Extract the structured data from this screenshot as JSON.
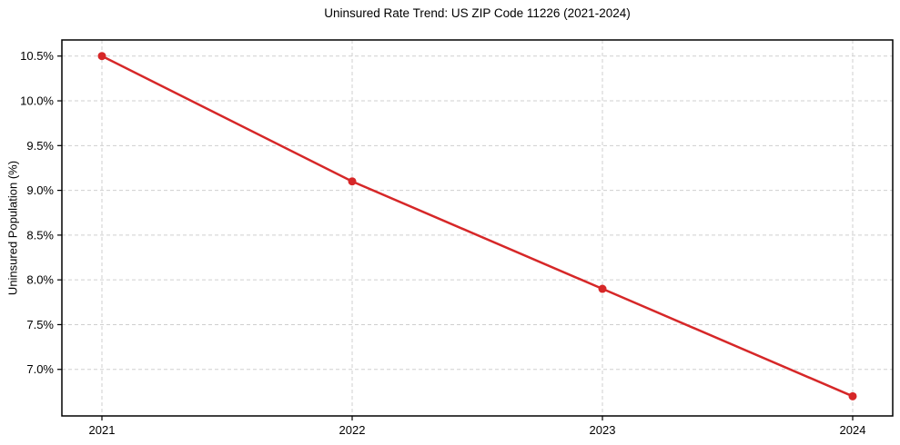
{
  "chart_data": {
    "type": "line",
    "title": "Uninsured Rate Trend: US ZIP Code 11226 (2021-2024)",
    "xlabel": "",
    "ylabel": "Uninsured Population (%)",
    "x": [
      2021,
      2022,
      2023,
      2024
    ],
    "x_tick_labels": [
      "2021",
      "2022",
      "2023",
      "2024"
    ],
    "y": [
      10.5,
      9.1,
      7.9,
      6.7
    ],
    "y_ticks": [
      7.0,
      7.5,
      8.0,
      8.5,
      9.0,
      9.5,
      10.0,
      10.5
    ],
    "y_tick_labels": [
      "7.0%",
      "7.5%",
      "8.0%",
      "8.5%",
      "9.0%",
      "9.5%",
      "10.0%",
      "10.5%"
    ],
    "xlim": [
      2020.84,
      2024.16
    ],
    "ylim": [
      6.48,
      10.68
    ],
    "grid": true,
    "grid_style": "dashed",
    "legend": false,
    "colors": {
      "line": "#d62728",
      "marker": "#d62728",
      "grid": "#cfcfcf",
      "spine": "#000000",
      "text": "#000000",
      "background": "#ffffff"
    }
  }
}
